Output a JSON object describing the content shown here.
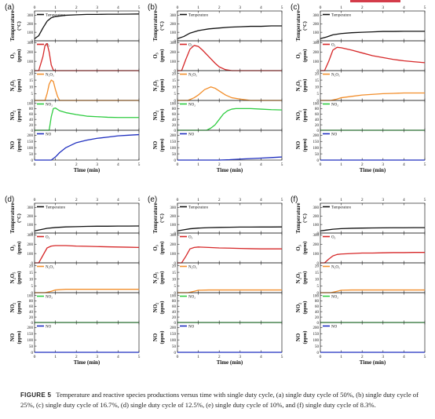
{
  "figure": {
    "caption_label": "FIGURE 5",
    "caption_text": "Temperature and reactive species productions versus time with single duty cycle, (a) single duty cycle of 50%, (b) single duty cycle of 25%, (c) single duty cycle of 16.7%, (d) single duty cycle of 12.5%, (e) single duty cycle of 10%, and (f) single duty cycle of 8.3%.",
    "accent_color": "#d43c4a"
  },
  "axis_text": {
    "xlabel": "Time (min)",
    "x_ticks": [
      "0",
      "1",
      "2",
      "3",
      "4",
      "5"
    ]
  },
  "row_defs": [
    {
      "key": "temp",
      "ylabel": "Temperature",
      "unit": "(°C)",
      "legend": "Temperature",
      "color": "#111111",
      "ticks": [
        "0",
        "100",
        "200",
        "300"
      ],
      "ylim": [
        0,
        350
      ]
    },
    {
      "key": "o3",
      "ylabel": "O₃",
      "unit": "(ppm)",
      "legend": "O₃",
      "color": "#d62728",
      "ticks": [
        "0",
        "100",
        "200",
        "300"
      ],
      "ylim": [
        0,
        320
      ]
    },
    {
      "key": "n2o5",
      "ylabel": "N₂O₅",
      "unit": "(ppm)",
      "legend": "N₂O₅",
      "color": "#f28e2b",
      "ticks": [
        "0",
        "5",
        "10",
        "15",
        "20"
      ],
      "ylim": [
        0,
        22
      ]
    },
    {
      "key": "no2",
      "ylabel": "NO₂",
      "unit": "(ppm)",
      "legend": "NO₂",
      "color": "#2ecc40",
      "ticks": [
        "0",
        "20",
        "40",
        "60",
        "80",
        "100"
      ],
      "ylim": [
        0,
        110
      ]
    },
    {
      "key": "no",
      "ylabel": "NO",
      "unit": "(ppm)",
      "legend": "NO",
      "color": "#1f2fbf",
      "ticks": [
        "0",
        "50",
        "100",
        "150",
        "200"
      ],
      "ylim": [
        0,
        240
      ]
    }
  ],
  "chart_data": [
    {
      "panel": "(a)",
      "type": "line",
      "xlim": [
        0,
        5
      ],
      "series": [
        {
          "name": "Temperature",
          "x": [
            0,
            0.2,
            0.4,
            0.6,
            0.8,
            1,
            1.5,
            2,
            2.5,
            3,
            3.5,
            4,
            4.5,
            5
          ],
          "y": [
            25,
            60,
            150,
            230,
            270,
            285,
            300,
            305,
            310,
            310,
            312,
            312,
            313,
            315
          ]
        },
        {
          "name": "O₃",
          "x": [
            0,
            0.2,
            0.4,
            0.5,
            0.6,
            0.7,
            0.8,
            0.9,
            1,
            1.2,
            1.5,
            2,
            3,
            4,
            5
          ],
          "y": [
            0,
            0,
            150,
            270,
            290,
            200,
            60,
            5,
            0,
            0,
            0,
            0,
            0,
            0,
            0
          ]
        },
        {
          "name": "N₂O₅",
          "x": [
            0,
            0.5,
            0.6,
            0.7,
            0.8,
            0.9,
            1,
            1.1,
            1.2,
            1.4,
            1.6,
            2,
            3,
            4,
            5
          ],
          "y": [
            0,
            0,
            5,
            12,
            15,
            14,
            8,
            3,
            0,
            0,
            0,
            0,
            0,
            0,
            0
          ]
        },
        {
          "name": "NO₂",
          "x": [
            0,
            0.7,
            0.8,
            0.9,
            1,
            1.2,
            1.5,
            2,
            2.5,
            3,
            3.5,
            4,
            4.5,
            5
          ],
          "y": [
            0,
            0,
            50,
            80,
            82,
            72,
            65,
            58,
            52,
            50,
            48,
            47,
            47,
            47
          ]
        },
        {
          "name": "NO",
          "x": [
            0,
            0.8,
            1,
            1.2,
            1.5,
            2,
            2.5,
            3,
            3.5,
            4,
            4.5,
            5
          ],
          "y": [
            0,
            0,
            25,
            60,
            100,
            140,
            160,
            175,
            185,
            195,
            200,
            205
          ]
        }
      ]
    },
    {
      "panel": "(b)",
      "type": "line",
      "xlim": [
        0,
        5
      ],
      "series": [
        {
          "name": "Temperature",
          "x": [
            0,
            0.3,
            0.6,
            1,
            1.5,
            2,
            2.5,
            3,
            3.5,
            4,
            4.5,
            5
          ],
          "y": [
            25,
            50,
            90,
            120,
            140,
            150,
            160,
            165,
            170,
            170,
            175,
            175
          ]
        },
        {
          "name": "O₃",
          "x": [
            0,
            0.2,
            0.4,
            0.6,
            0.8,
            1,
            1.2,
            1.5,
            1.8,
            2,
            2.3,
            2.6,
            3,
            4,
            5
          ],
          "y": [
            0,
            0,
            120,
            230,
            270,
            260,
            220,
            150,
            80,
            40,
            10,
            0,
            0,
            0,
            0
          ]
        },
        {
          "name": "N₂O₅",
          "x": [
            0,
            0.5,
            0.8,
            1,
            1.3,
            1.6,
            1.8,
            2,
            2.3,
            2.6,
            3,
            3.5,
            4,
            5
          ],
          "y": [
            0,
            0,
            2,
            4,
            8,
            10,
            9,
            7,
            4,
            2,
            1,
            0,
            0,
            0
          ]
        },
        {
          "name": "NO₂",
          "x": [
            0,
            1.4,
            1.6,
            1.8,
            2,
            2.2,
            2.4,
            2.6,
            2.8,
            3,
            3.5,
            4,
            4.5,
            5
          ],
          "y": [
            0,
            0,
            8,
            20,
            40,
            60,
            72,
            78,
            80,
            80,
            80,
            78,
            76,
            75
          ]
        },
        {
          "name": "NO",
          "x": [
            0,
            2,
            2.5,
            3,
            3.5,
            4,
            4.5,
            5
          ],
          "y": [
            0,
            0,
            3,
            8,
            12,
            16,
            20,
            25
          ]
        }
      ]
    },
    {
      "panel": "(c)",
      "type": "line",
      "xlim": [
        0,
        5
      ],
      "series": [
        {
          "name": "Temperature",
          "x": [
            0,
            0.3,
            0.6,
            1,
            1.5,
            2,
            2.5,
            3,
            3.5,
            4,
            4.5,
            5
          ],
          "y": [
            25,
            45,
            70,
            85,
            95,
            100,
            105,
            110,
            110,
            112,
            112,
            112
          ]
        },
        {
          "name": "O₃",
          "x": [
            0,
            0.2,
            0.4,
            0.6,
            0.8,
            1,
            1.5,
            2,
            2.5,
            3,
            3.5,
            4,
            4.5,
            5
          ],
          "y": [
            0,
            0,
            100,
            220,
            250,
            245,
            220,
            190,
            160,
            140,
            120,
            105,
            95,
            85
          ]
        },
        {
          "name": "N₂O₅",
          "x": [
            0,
            0.5,
            0.8,
            1,
            1.5,
            2,
            2.5,
            3,
            3.5,
            4,
            4.5,
            5
          ],
          "y": [
            0,
            0,
            1,
            2,
            3,
            4,
            4.5,
            5,
            5.2,
            5.5,
            5.5,
            5.5
          ]
        },
        {
          "name": "NO₂",
          "x": [
            0,
            5
          ],
          "y": [
            0,
            0
          ]
        },
        {
          "name": "NO",
          "x": [
            0,
            5
          ],
          "y": [
            0,
            0
          ]
        }
      ]
    },
    {
      "panel": "(d)",
      "type": "line",
      "xlim": [
        0,
        5
      ],
      "series": [
        {
          "name": "Temperature",
          "x": [
            0,
            0.3,
            0.6,
            1,
            1.5,
            2,
            2.5,
            3,
            3.5,
            4,
            4.5,
            5
          ],
          "y": [
            25,
            40,
            55,
            65,
            72,
            75,
            78,
            80,
            80,
            82,
            82,
            83
          ]
        },
        {
          "name": "O₃",
          "x": [
            0,
            0.2,
            0.4,
            0.6,
            0.8,
            1,
            1.5,
            2,
            2.5,
            3,
            3.5,
            4,
            4.5,
            5
          ],
          "y": [
            0,
            0,
            80,
            160,
            180,
            185,
            185,
            180,
            178,
            175,
            172,
            170,
            168,
            165
          ]
        },
        {
          "name": "N₂O₅",
          "x": [
            0,
            0.5,
            0.8,
            1,
            1.5,
            2,
            3,
            4,
            5
          ],
          "y": [
            0,
            0,
            1,
            2,
            2.5,
            2.5,
            2.5,
            2.5,
            2.5
          ]
        },
        {
          "name": "NO₂",
          "x": [
            0,
            5
          ],
          "y": [
            0,
            0
          ]
        },
        {
          "name": "NO",
          "x": [
            0,
            5
          ],
          "y": [
            0,
            0
          ]
        }
      ]
    },
    {
      "panel": "(e)",
      "type": "line",
      "xlim": [
        0,
        5
      ],
      "series": [
        {
          "name": "Temperature",
          "x": [
            0,
            0.3,
            0.6,
            1,
            1.5,
            2,
            2.5,
            3,
            3.5,
            4,
            4.5,
            5
          ],
          "y": [
            25,
            38,
            50,
            58,
            63,
            66,
            68,
            70,
            70,
            71,
            71,
            72
          ]
        },
        {
          "name": "O₃",
          "x": [
            0,
            0.2,
            0.4,
            0.6,
            0.8,
            1,
            1.5,
            2,
            2.5,
            3,
            3.5,
            4,
            4.5,
            5
          ],
          "y": [
            0,
            0,
            70,
            150,
            165,
            170,
            165,
            160,
            158,
            155,
            152,
            150,
            150,
            150
          ]
        },
        {
          "name": "N₂O₅",
          "x": [
            0,
            0.5,
            0.8,
            1,
            1.5,
            2,
            3,
            4,
            5
          ],
          "y": [
            0,
            0,
            1,
            1.8,
            2,
            2,
            2,
            2,
            2
          ]
        },
        {
          "name": "NO₂",
          "x": [
            0,
            5
          ],
          "y": [
            0,
            0
          ]
        },
        {
          "name": "NO",
          "x": [
            0,
            5
          ],
          "y": [
            0,
            0
          ]
        }
      ]
    },
    {
      "panel": "(f)",
      "type": "line",
      "xlim": [
        0,
        5
      ],
      "series": [
        {
          "name": "Temperature",
          "x": [
            0,
            0.3,
            0.6,
            1,
            1.5,
            2,
            2.5,
            3,
            3.5,
            4,
            4.5,
            5
          ],
          "y": [
            25,
            35,
            45,
            52,
            56,
            58,
            60,
            61,
            62,
            62,
            63,
            63
          ]
        },
        {
          "name": "O₃",
          "x": [
            0,
            0.2,
            0.4,
            0.6,
            0.8,
            1,
            1.5,
            2,
            2.5,
            3,
            3.5,
            4,
            4.5,
            5
          ],
          "y": [
            0,
            0,
            40,
            75,
            90,
            95,
            100,
            105,
            105,
            108,
            110,
            110,
            112,
            112
          ]
        },
        {
          "name": "N₂O₅",
          "x": [
            0,
            0.5,
            0.8,
            1,
            1.5,
            2,
            3,
            4,
            5
          ],
          "y": [
            0,
            0,
            1,
            1.8,
            2,
            2,
            2,
            2,
            2
          ]
        },
        {
          "name": "NO₂",
          "x": [
            0,
            5
          ],
          "y": [
            0,
            0
          ]
        },
        {
          "name": "NO",
          "x": [
            0,
            5
          ],
          "y": [
            0,
            0
          ]
        }
      ]
    }
  ]
}
